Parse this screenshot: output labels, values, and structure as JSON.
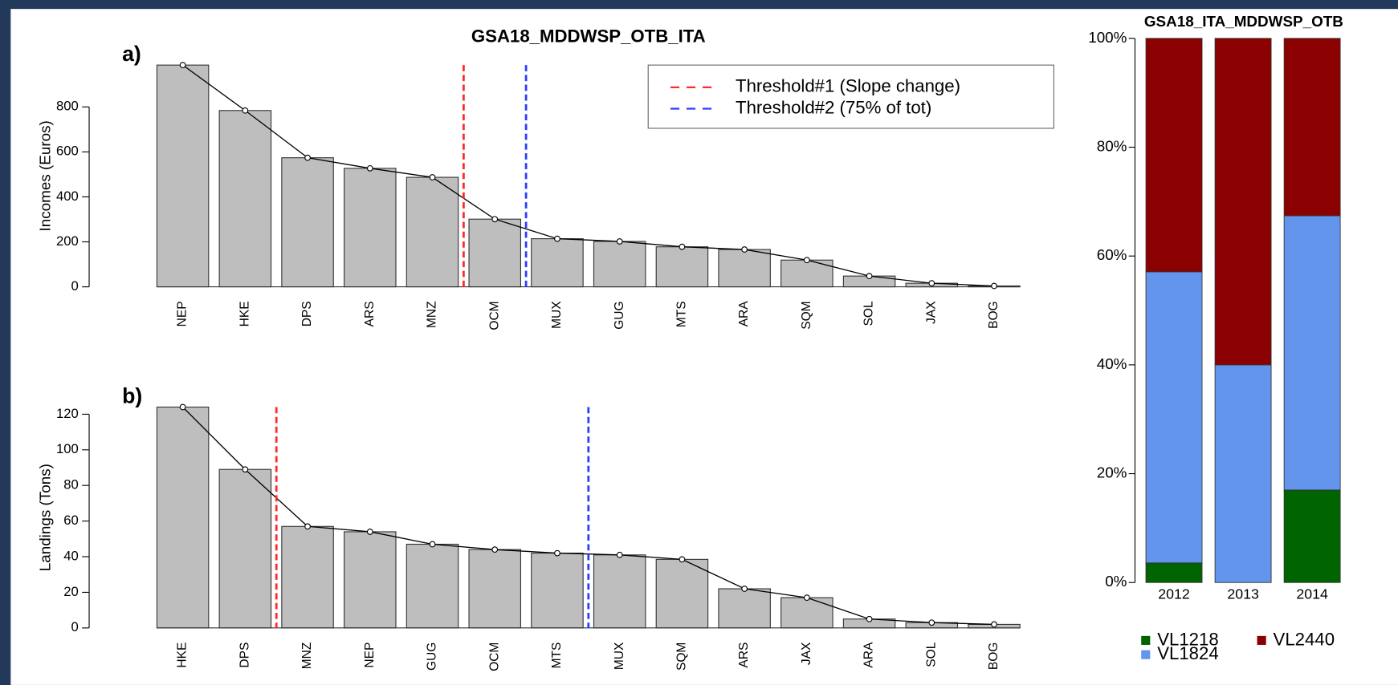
{
  "chart_data": [
    {
      "type": "bar",
      "title": "GSA18_MDDWSP_OTB_ITA",
      "panel_label": "a)",
      "ylabel": "Incomes (Euros)",
      "categories": [
        "NEP",
        "HKE",
        "DPS",
        "ARS",
        "MNZ",
        "OCM",
        "MUX",
        "GUG",
        "MTS",
        "ARA",
        "SQM",
        "SOL",
        "JAX",
        "BOG"
      ],
      "values": [
        986,
        784,
        574,
        527,
        487,
        301,
        214,
        202,
        178,
        166,
        119,
        48,
        16,
        4
      ],
      "color": "#bebebe",
      "overlay_line": true,
      "ylim": [
        0,
        986
      ],
      "yticks": [
        0,
        200,
        400,
        600,
        800
      ],
      "thresholds": [
        {
          "name": "Threshold#1 (Slope change)",
          "color": "#ff2a2a",
          "x": 4.5
        },
        {
          "name": "Threshold#2 (75% of tot)",
          "color": "#2a3cff",
          "x": 5.5
        }
      ],
      "legend": "top-right"
    },
    {
      "type": "bar",
      "panel_label": "b)",
      "ylabel": "Landings (Tons)",
      "categories": [
        "HKE",
        "DPS",
        "MNZ",
        "NEP",
        "GUG",
        "OCM",
        "MTS",
        "MUX",
        "SQM",
        "ARS",
        "JAX",
        "ARA",
        "SOL",
        "BOG"
      ],
      "values": [
        124,
        89,
        57,
        54,
        47,
        44,
        42,
        41,
        38.5,
        22,
        17,
        5,
        3,
        2
      ],
      "color": "#bebebe",
      "overlay_line": true,
      "ylim": [
        0,
        124
      ],
      "yticks": [
        0,
        20,
        40,
        60,
        80,
        100,
        120
      ],
      "thresholds": [
        {
          "color": "#ff2a2a",
          "x": 1.5
        },
        {
          "color": "#2a3cff",
          "x": 6.5
        }
      ]
    },
    {
      "type": "stacked_bar",
      "title": "GSA18_ITA_MDDWSP_OTB",
      "categories": [
        "2012",
        "2013",
        "2014"
      ],
      "series": [
        {
          "name": "VL1218",
          "color": "#006400",
          "values": [
            3.6,
            0,
            17
          ]
        },
        {
          "name": "VL1824",
          "color": "#6495ed",
          "values": [
            53.5,
            40,
            50.4
          ]
        },
        {
          "name": "VL2440",
          "color": "#8b0000",
          "values": [
            42.9,
            60,
            32.6
          ]
        }
      ],
      "ylim": [
        0,
        100
      ],
      "yticks": [
        {
          "value": 0,
          "label": "0%"
        },
        {
          "value": 20,
          "label": "20%"
        },
        {
          "value": 40,
          "label": "40%"
        },
        {
          "value": 60,
          "label": "60%"
        },
        {
          "value": 80,
          "label": "80%"
        },
        {
          "value": 100,
          "label": "100%"
        }
      ],
      "legend": "bottom"
    }
  ]
}
